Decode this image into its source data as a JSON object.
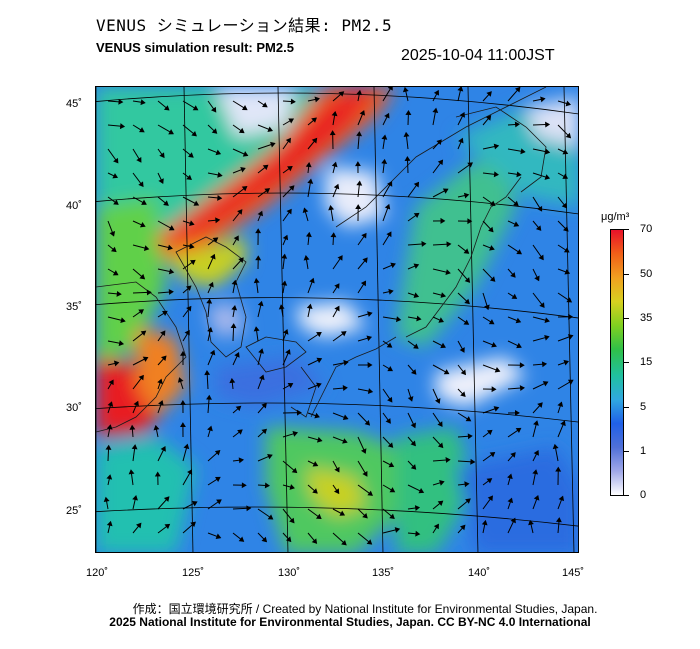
{
  "title_jp": "VENUS シミュレーション結果: PM2.5",
  "title_en": "VENUS simulation result: PM2.5",
  "timestamp": "2025-10-04 11:00JST",
  "lon_labels": [
    "120˚",
    "125˚",
    "130˚",
    "135˚",
    "140˚",
    "145˚"
  ],
  "lat_labels": [
    "45˚",
    "40˚",
    "35˚",
    "30˚",
    "25˚"
  ],
  "colorbar": {
    "unit": "μg/m³",
    "ticks": [
      "70",
      "50",
      "35",
      "15",
      "5",
      "1",
      "0"
    ],
    "colors": [
      "#e8122a",
      "#f06018",
      "#f0a020",
      "#d8d020",
      "#80d020",
      "#30c048",
      "#20c0a0",
      "#30a8e0",
      "#2060e8",
      "#5070d8",
      "#a0a8e8",
      "#ffffff"
    ]
  },
  "credit_line1": "作成：国立環境研究所 / Created by National Institute for Environmental Studies, Japan.",
  "credit_line2": "2025 National Institute for Environmental Studies, Japan. CC BY-NC 4.0 International"
}
